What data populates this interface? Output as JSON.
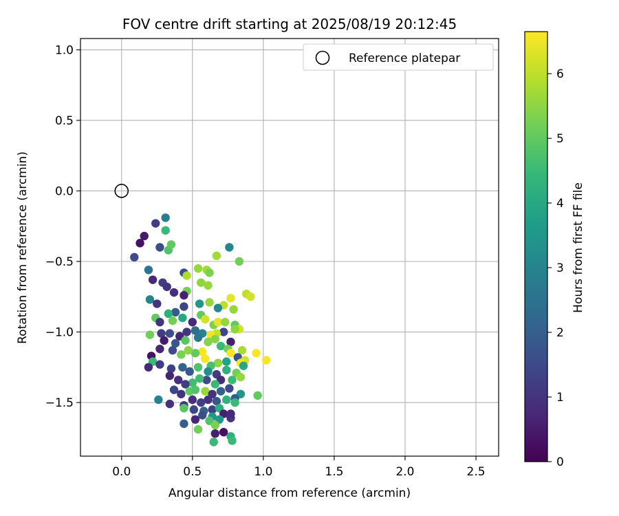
{
  "chart_data": {
    "type": "scatter",
    "title": "FOV centre drift starting at 2025/08/19 20:12:45",
    "xlabel": "Angular distance from reference (arcmin)",
    "ylabel": "Rotation from reference (arcmin)",
    "xlim": [
      -0.29,
      2.66
    ],
    "ylim": [
      -1.88,
      1.08
    ],
    "xticks": [
      0.0,
      0.5,
      1.0,
      1.5,
      2.0,
      2.5
    ],
    "xtick_labels": [
      "0.0",
      "0.5",
      "1.0",
      "1.5",
      "2.0",
      "2.5"
    ],
    "yticks": [
      1.0,
      0.5,
      0.0,
      -0.5,
      -1.0,
      -1.5
    ],
    "ytick_labels": [
      "1.0",
      "0.5",
      "0.0",
      "−0.5",
      "−1.0",
      "−1.5"
    ],
    "grid": true,
    "legend": {
      "position": "top-right",
      "label": "Reference platepar"
    },
    "reference_point": {
      "x": 0.0,
      "y": 0.0
    },
    "colorbar": {
      "label": "Hours from first FF file",
      "range": [
        0,
        6.65
      ],
      "ticks": [
        0,
        1,
        2,
        3,
        4,
        5,
        6
      ],
      "tick_labels": [
        "0",
        "1",
        "2",
        "3",
        "4",
        "5",
        "6"
      ],
      "colormap": "viridis"
    },
    "colormap_stops": [
      "#440154",
      "#482878",
      "#3e4989",
      "#31688e",
      "#26828e",
      "#1f9e89",
      "#35b779",
      "#6ece58",
      "#b5de2b",
      "#fde725"
    ],
    "point_columns": [
      "x",
      "y",
      "hours"
    ],
    "points": [
      [
        0.09,
        -0.47,
        1.5
      ],
      [
        0.13,
        -0.37,
        0.3
      ],
      [
        0.16,
        -0.32,
        0.5
      ],
      [
        0.24,
        -0.23,
        1.2
      ],
      [
        0.31,
        -0.19,
        2.8
      ],
      [
        0.31,
        -0.28,
        4.5
      ],
      [
        0.27,
        -0.4,
        1.6
      ],
      [
        0.33,
        -0.42,
        4.8
      ],
      [
        0.35,
        -0.38,
        5.0
      ],
      [
        0.19,
        -0.56,
        2.6
      ],
      [
        0.76,
        -0.4,
        3.1
      ],
      [
        0.67,
        -0.46,
        5.7
      ],
      [
        0.83,
        -0.5,
        5.2
      ],
      [
        0.54,
        -0.55,
        5.6
      ],
      [
        0.6,
        -0.56,
        5.7
      ],
      [
        0.62,
        -0.58,
        5.3
      ],
      [
        0.44,
        -0.58,
        1.5
      ],
      [
        0.46,
        -0.6,
        5.8
      ],
      [
        0.22,
        -0.63,
        0.8
      ],
      [
        0.29,
        -0.65,
        1.2
      ],
      [
        0.32,
        -0.68,
        1.0
      ],
      [
        0.61,
        -0.67,
        5.6
      ],
      [
        0.56,
        -0.65,
        5.5
      ],
      [
        0.88,
        -0.73,
        6.0
      ],
      [
        0.91,
        -0.75,
        6.2
      ],
      [
        0.77,
        -0.76,
        6.4
      ],
      [
        0.46,
        -0.71,
        5.2
      ],
      [
        0.44,
        -0.74,
        0.6
      ],
      [
        0.37,
        -0.72,
        0.9
      ],
      [
        0.2,
        -0.77,
        3.0
      ],
      [
        0.25,
        -0.8,
        1.0
      ],
      [
        0.55,
        -0.8,
        3.5
      ],
      [
        0.62,
        -0.79,
        5.6
      ],
      [
        0.72,
        -0.81,
        6.0
      ],
      [
        0.79,
        -0.84,
        5.6
      ],
      [
        0.68,
        -0.83,
        3.2
      ],
      [
        0.44,
        -0.82,
        1.4
      ],
      [
        0.38,
        -0.86,
        1.9
      ],
      [
        0.33,
        -0.87,
        4.2
      ],
      [
        0.24,
        -0.9,
        5.0
      ],
      [
        0.27,
        -0.93,
        1.0
      ],
      [
        0.36,
        -0.92,
        5.2
      ],
      [
        0.43,
        -0.9,
        4.0
      ],
      [
        0.5,
        -0.93,
        0.8
      ],
      [
        0.56,
        -0.88,
        5.0
      ],
      [
        0.59,
        -0.91,
        6.2
      ],
      [
        0.65,
        -0.95,
        5.3
      ],
      [
        0.68,
        -0.93,
        6.4
      ],
      [
        0.73,
        -0.93,
        5.6
      ],
      [
        0.8,
        -0.95,
        5.0
      ],
      [
        0.83,
        -0.98,
        6.2
      ],
      [
        0.8,
        -0.98,
        5.5
      ],
      [
        0.72,
        -1.0,
        1.4
      ],
      [
        0.67,
        -1.01,
        6.1
      ],
      [
        0.63,
        -1.02,
        6.5
      ],
      [
        0.57,
        -1.01,
        3.0
      ],
      [
        0.52,
        -0.99,
        2.4
      ],
      [
        0.46,
        -1.0,
        1.1
      ],
      [
        0.41,
        -1.03,
        0.7
      ],
      [
        0.34,
        -1.01,
        1.6
      ],
      [
        0.28,
        -1.01,
        1.2
      ],
      [
        0.2,
        -1.02,
        5.2
      ],
      [
        0.3,
        -1.06,
        0.5
      ],
      [
        0.38,
        -1.08,
        1.8
      ],
      [
        0.45,
        -1.06,
        4.9
      ],
      [
        0.54,
        -1.04,
        2.6
      ],
      [
        0.61,
        -1.07,
        5.4
      ],
      [
        0.66,
        -1.05,
        5.4
      ],
      [
        0.7,
        -1.1,
        4.5
      ],
      [
        0.77,
        -1.07,
        0.6
      ],
      [
        0.75,
        -1.12,
        5.2
      ],
      [
        0.85,
        -1.13,
        5.8
      ],
      [
        0.77,
        -1.15,
        6.6
      ],
      [
        0.82,
        -1.18,
        1.7
      ],
      [
        0.87,
        -1.2,
        6.2
      ],
      [
        0.95,
        -1.15,
        6.6
      ],
      [
        1.02,
        -1.2,
        6.6
      ],
      [
        0.84,
        -1.22,
        6.6
      ],
      [
        0.86,
        -1.24,
        4.0
      ],
      [
        0.74,
        -1.21,
        3.8
      ],
      [
        0.68,
        -1.22,
        5.5
      ],
      [
        0.63,
        -1.24,
        4.7
      ],
      [
        0.59,
        -1.19,
        6.6
      ],
      [
        0.57,
        -1.14,
        6.6
      ],
      [
        0.52,
        -1.15,
        5.0
      ],
      [
        0.47,
        -1.13,
        5.5
      ],
      [
        0.42,
        -1.16,
        5.3
      ],
      [
        0.36,
        -1.13,
        1.5
      ],
      [
        0.27,
        -1.12,
        0.7
      ],
      [
        0.21,
        -1.17,
        0.3
      ],
      [
        0.22,
        -1.21,
        4.5
      ],
      [
        0.19,
        -1.25,
        0.8
      ],
      [
        0.27,
        -1.23,
        1.2
      ],
      [
        0.35,
        -1.26,
        1.3
      ],
      [
        0.43,
        -1.25,
        2.1
      ],
      [
        0.48,
        -1.28,
        1.8
      ],
      [
        0.54,
        -1.25,
        4.8
      ],
      [
        0.61,
        -1.28,
        3.3
      ],
      [
        0.67,
        -1.3,
        1.2
      ],
      [
        0.74,
        -1.27,
        4.2
      ],
      [
        0.81,
        -1.29,
        5.2
      ],
      [
        0.84,
        -1.32,
        5.6
      ],
      [
        0.78,
        -1.34,
        4.5
      ],
      [
        0.7,
        -1.34,
        0.8
      ],
      [
        0.66,
        -1.37,
        4.5
      ],
      [
        0.6,
        -1.34,
        1.5
      ],
      [
        0.55,
        -1.33,
        4.6
      ],
      [
        0.5,
        -1.36,
        4.6
      ],
      [
        0.45,
        -1.37,
        1.2
      ],
      [
        0.4,
        -1.34,
        0.9
      ],
      [
        0.34,
        -1.31,
        0.7
      ],
      [
        0.37,
        -1.41,
        1.4
      ],
      [
        0.42,
        -1.44,
        1.0
      ],
      [
        0.48,
        -1.42,
        5.0
      ],
      [
        0.52,
        -1.41,
        4.8
      ],
      [
        0.59,
        -1.42,
        5.6
      ],
      [
        0.64,
        -1.44,
        1.0
      ],
      [
        0.7,
        -1.42,
        2.1
      ],
      [
        0.76,
        -1.4,
        1.5
      ],
      [
        0.84,
        -1.44,
        3.5
      ],
      [
        0.96,
        -1.45,
        5.0
      ],
      [
        0.8,
        -1.47,
        1.9
      ],
      [
        0.74,
        -1.48,
        4.3
      ],
      [
        0.67,
        -1.49,
        1.8
      ],
      [
        0.61,
        -1.48,
        1.0
      ],
      [
        0.56,
        -1.5,
        1.3
      ],
      [
        0.5,
        -1.48,
        0.9
      ],
      [
        0.44,
        -1.52,
        1.1
      ],
      [
        0.34,
        -1.51,
        1.0
      ],
      [
        0.26,
        -1.48,
        3.0
      ],
      [
        0.44,
        -1.54,
        4.9
      ],
      [
        0.51,
        -1.55,
        1.4
      ],
      [
        0.58,
        -1.56,
        2.1
      ],
      [
        0.64,
        -1.55,
        1.3
      ],
      [
        0.69,
        -1.54,
        4.2
      ],
      [
        0.8,
        -1.5,
        4.5
      ],
      [
        0.72,
        -1.58,
        0.6
      ],
      [
        0.64,
        -1.6,
        3.5
      ],
      [
        0.57,
        -1.59,
        1.6
      ],
      [
        0.52,
        -1.62,
        0.7
      ],
      [
        0.44,
        -1.65,
        2.0
      ],
      [
        0.54,
        -1.69,
        5.2
      ],
      [
        0.62,
        -1.63,
        4.8
      ],
      [
        0.69,
        -1.62,
        3.6
      ],
      [
        0.77,
        -1.61,
        1.0
      ],
      [
        0.77,
        -1.58,
        0.8
      ],
      [
        0.66,
        -1.66,
        5.3
      ],
      [
        0.66,
        -1.72,
        0.6
      ],
      [
        0.72,
        -1.71,
        0.3
      ],
      [
        0.77,
        -1.74,
        4.2
      ],
      [
        0.78,
        -1.77,
        4.5
      ],
      [
        0.65,
        -1.78,
        4.5
      ]
    ]
  }
}
